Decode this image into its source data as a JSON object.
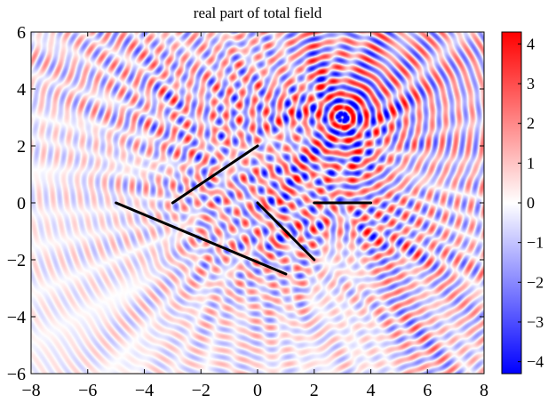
{
  "chart_data": {
    "type": "heatmap",
    "title": "real part of total field",
    "xlabel": "",
    "ylabel": "",
    "xlim": [
      -8,
      8
    ],
    "ylim": [
      -6,
      6
    ],
    "xticks": [
      -8,
      -6,
      -4,
      -2,
      0,
      2,
      4,
      6,
      8
    ],
    "yticks": [
      -6,
      -4,
      -2,
      0,
      2,
      4,
      6
    ],
    "xtick_labels": [
      "−8",
      "−6",
      "−4",
      "−2",
      "0",
      "2",
      "4",
      "6",
      "8"
    ],
    "ytick_labels": [
      "−6",
      "−4",
      "−2",
      "0",
      "2",
      "4",
      "6"
    ],
    "colorbar": {
      "range": [
        -4.3,
        4.3
      ],
      "ticks": [
        4,
        3,
        2,
        1,
        0,
        -1,
        -2,
        -3,
        -4
      ],
      "tick_labels": [
        "4",
        "3",
        "2",
        "1",
        "0",
        "−1",
        "−2",
        "−3",
        "−4"
      ],
      "colors": [
        "#0000ff",
        "#ffffff",
        "#ff0000"
      ]
    },
    "source": {
      "x": 3,
      "y": 3
    },
    "scatterers": [
      {
        "x1": -5.0,
        "y1": 0.0,
        "x2": 1.0,
        "y2": -2.5
      },
      {
        "x1": -3.0,
        "y1": 0.0,
        "x2": 0.0,
        "y2": 2.0
      },
      {
        "x1": 0.0,
        "y1": 0.0,
        "x2": 2.0,
        "y2": -2.0
      },
      {
        "x1": 2.0,
        "y1": 0.0,
        "x2": 4.0,
        "y2": 0.0
      }
    ]
  }
}
